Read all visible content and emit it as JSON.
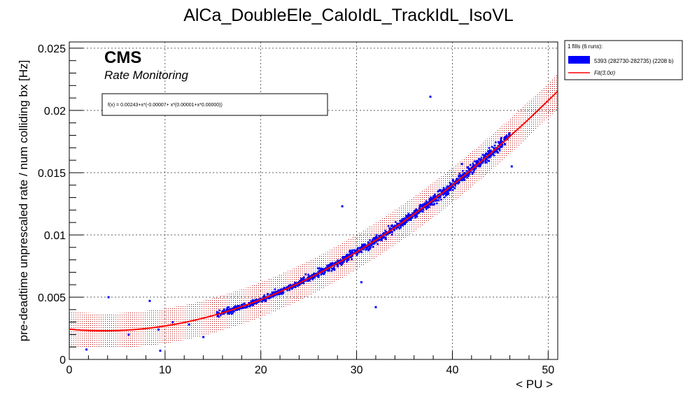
{
  "chart_data": {
    "type": "scatter",
    "title": "AlCa_DoubleEle_CaloIdL_TrackIdL_IsoVL",
    "xlabel": "< PU >",
    "ylabel": "pre-deadtime unprescaled rate / num colliding bx [Hz]",
    "xlim": [
      0,
      51
    ],
    "ylim": [
      0,
      0.0255
    ],
    "xticks": [
      "0",
      "10",
      "20",
      "30",
      "40",
      "50"
    ],
    "yticks": [
      "0",
      "0.005",
      "0.01",
      "0.015",
      "0.02",
      "0.025"
    ],
    "grid": true,
    "cms_label": "CMS",
    "subtitle": "Rate Monitoring",
    "fit_formula": "f(x) = 0.00243+x*(-0.00007+ x*(0.00001+x*0.00000))",
    "fit_coefficients": [
      0.00243,
      -7e-05,
      1e-05,
      0.0
    ],
    "fit_band_halfwidth": 0.0014,
    "legend": {
      "placement": "top-right",
      "header": "1 fills (6 runs):",
      "entries": [
        "5393 (282730-282735) (2208 b)",
        "Fit(3.0σ)"
      ]
    },
    "series": [
      {
        "name": "5393 (282730-282735) (2208 b)",
        "color": "#0000ff",
        "main_cluster": {
          "x_range": [
            15.4,
            46.0
          ],
          "count": 1400,
          "follows": "fit_curve",
          "spread": 0.00022
        },
        "outliers": [
          {
            "x": 1.8,
            "y": 0.0008
          },
          {
            "x": 4.1,
            "y": 0.005
          },
          {
            "x": 6.2,
            "y": 0.002
          },
          {
            "x": 8.4,
            "y": 0.0047
          },
          {
            "x": 9.3,
            "y": 0.0024
          },
          {
            "x": 9.5,
            "y": 0.0007
          },
          {
            "x": 10.8,
            "y": 0.003
          },
          {
            "x": 12.5,
            "y": 0.0028
          },
          {
            "x": 14.0,
            "y": 0.0018
          },
          {
            "x": 28.5,
            "y": 0.0123
          },
          {
            "x": 30.5,
            "y": 0.0062
          },
          {
            "x": 32.0,
            "y": 0.0042
          },
          {
            "x": 37.7,
            "y": 0.0211
          },
          {
            "x": 41.0,
            "y": 0.0157
          },
          {
            "x": 46.2,
            "y": 0.0155
          }
        ]
      },
      {
        "name": "Fit(3.0σ)",
        "color": "#ff0000",
        "type": "line",
        "x_range": [
          0,
          51
        ]
      }
    ]
  }
}
